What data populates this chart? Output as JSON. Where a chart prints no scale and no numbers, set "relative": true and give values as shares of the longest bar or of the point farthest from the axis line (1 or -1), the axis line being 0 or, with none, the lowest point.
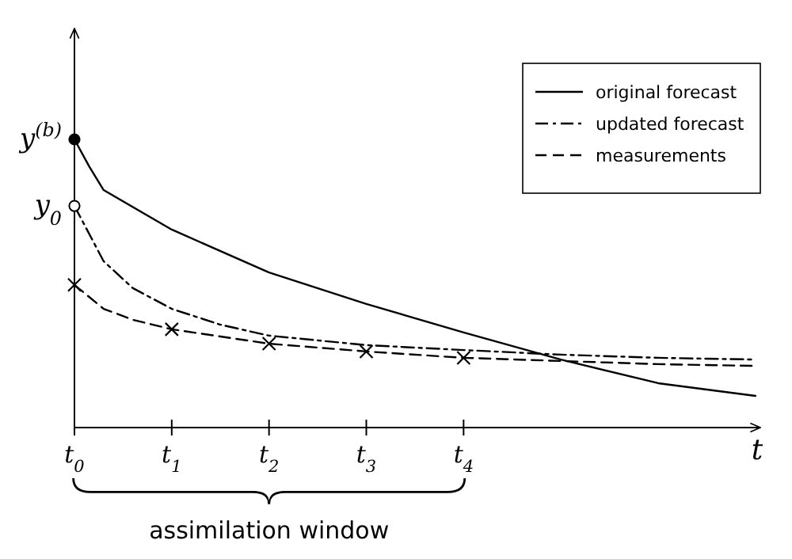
{
  "chart_data": {
    "type": "line",
    "relative": true,
    "xlabel": "t",
    "xlim": [
      0,
      7.05
    ],
    "xticks": [
      {
        "value": 0,
        "label": "t$_{0}$"
      },
      {
        "value": 1,
        "label": "t$_{1}$"
      },
      {
        "value": 2,
        "label": "t$_{2}$"
      },
      {
        "value": 3,
        "label": "t$_{3}$"
      },
      {
        "value": 4,
        "label": "t$_{4}$"
      }
    ],
    "legend": "top right",
    "grid": false,
    "series": [
      {
        "name": "original forecast",
        "color": "#000000",
        "line_style": "solid",
        "marker": "none",
        "x": [
          0,
          0.15,
          0.3,
          1,
          2,
          3,
          4,
          5,
          6,
          7
        ],
        "values": [
          1,
          0.907,
          0.824,
          0.687,
          0.538,
          0.429,
          0.33,
          0.236,
          0.154,
          0.11
        ]
      },
      {
        "name": "updated forecast",
        "color": "#000000",
        "line_style": "dashdot",
        "marker": "none",
        "x": [
          0,
          0.3,
          0.6,
          1,
          1.5,
          2,
          3,
          4,
          5,
          6,
          7
        ],
        "values": [
          0.769,
          0.577,
          0.484,
          0.412,
          0.357,
          0.319,
          0.286,
          0.269,
          0.253,
          0.242,
          0.236
        ]
      },
      {
        "name": "measurements",
        "color": "#000000",
        "line_style": "dashed",
        "marker": "none",
        "x": [
          0,
          0.3,
          0.6,
          1,
          2,
          3,
          4,
          5,
          6,
          7
        ],
        "values": [
          0.495,
          0.412,
          0.374,
          0.341,
          0.291,
          0.264,
          0.242,
          0.231,
          0.22,
          0.214
        ]
      },
      {
        "type": "scatter",
        "color": "#000000",
        "marker": "cross",
        "x": [
          0,
          1,
          2,
          3,
          4
        ],
        "values": [
          0.495,
          0.341,
          0.291,
          0.264,
          0.242
        ]
      },
      {
        "type": "scatter",
        "color": "#000000",
        "marker": "circle",
        "x": [
          0
        ],
        "values": [
          1
        ]
      },
      {
        "type": "scatter",
        "color": "#ffffff",
        "marker": "circle",
        "x": [
          0
        ],
        "values": [
          0.769
        ]
      }
    ],
    "annotations": [
      {
        "text": "y$^{(b)}$",
        "x": 0,
        "y": 1
      },
      {
        "text": "y$_{0}$",
        "x": 0,
        "y": 0.769
      },
      "assimilation window"
    ]
  }
}
